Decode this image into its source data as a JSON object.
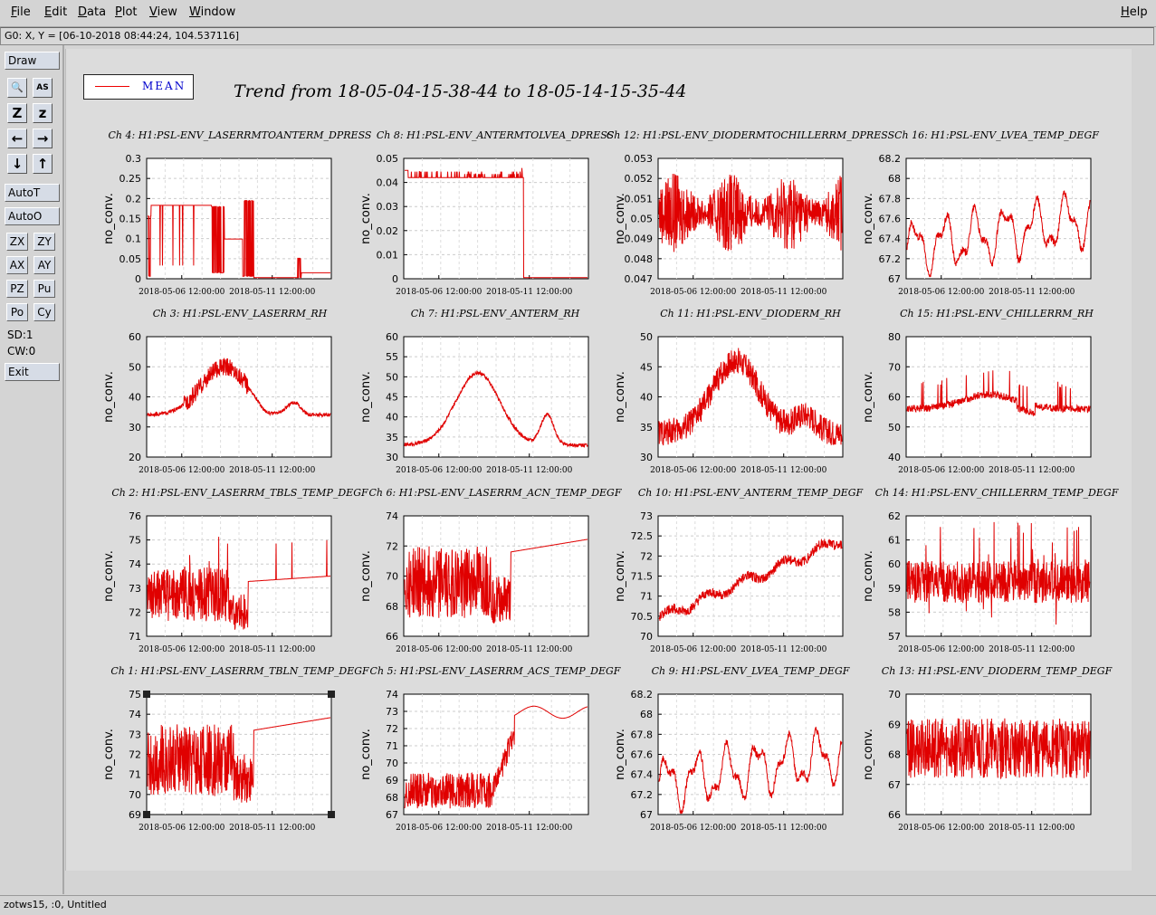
{
  "menu": {
    "file": "File",
    "edit": "Edit",
    "data": "Data",
    "plot": "Plot",
    "view": "View",
    "window": "Window",
    "help": "Help"
  },
  "coord_readout": "G0: X, Y = [06-10-2018 08:44:24, 104.537116]",
  "toolbar": {
    "draw": "Draw",
    "autot": "AutoT",
    "autoo": "AutoO",
    "zx": "ZX",
    "zy": "ZY",
    "ax": "AX",
    "ay": "AY",
    "pz": "PZ",
    "pu": "Pu",
    "po": "Po",
    "cy": "Cy",
    "sd": "SD:1",
    "cw": "CW:0",
    "exit": "Exit",
    "icons": [
      "magnify-icon",
      "text-icon",
      "zoom-out-icon",
      "zoom-in-icon",
      "left-arrow-icon",
      "right-arrow-icon",
      "down-arrow-icon",
      "up-arrow-icon"
    ],
    "icon_glyphs": [
      "🔍",
      "AS",
      "Z",
      "z",
      "←",
      "→",
      "↓",
      "↑"
    ]
  },
  "status": "zotws15, :0, Untitled",
  "legend": {
    "label": "MEAN",
    "color": "#e00000"
  },
  "trend_title": "Trend from 18-05-04-15-38-44 to 18-05-14-15-35-44",
  "chart_data": [
    {
      "type": "line",
      "title": "Ch 4: H1:PSL-ENV_LASERRMTOANTERM_DPRESS",
      "ylabel": "no_conv.",
      "yticks": [
        "0.3",
        "0.25",
        "0.2",
        "0.15",
        "0.1",
        "0.05",
        "0"
      ],
      "ylim": [
        0,
        0.3
      ],
      "xticks": [
        "2018-05-06 12:00:00",
        "2018-05-11 12:00:00"
      ],
      "pattern": "steps_low"
    },
    {
      "type": "line",
      "title": "Ch 8: H1:PSL-ENV_ANTERMTOLVEA_DPRESS",
      "ylabel": "no_conv.",
      "yticks": [
        "0.05",
        "0.04",
        "0.03",
        "0.02",
        "0.01",
        "0"
      ],
      "ylim": [
        0,
        0.05
      ],
      "xticks": [
        "2018-05-06 12:00:00",
        "2018-05-11 12:00:00"
      ],
      "pattern": "flat_drop"
    },
    {
      "type": "line",
      "title": "Ch 12: H1:PSL-ENV_DIODERMTOCHILLERRM_DPRESS",
      "ylabel": "no_conv.",
      "yticks": [
        "0.053",
        "0.052",
        "0.051",
        "0.05",
        "0.049",
        "0.048",
        "0.047"
      ],
      "ylim": [
        0.047,
        0.053
      ],
      "xticks": [
        "2018-05-06 12:00:00",
        "2018-05-11 12:00:00"
      ],
      "pattern": "dense_band"
    },
    {
      "type": "line",
      "title": "Ch 16: H1:PSL-ENV_LVEA_TEMP_DEGF",
      "ylabel": "no_conv.",
      "yticks": [
        "68.2",
        "68",
        "67.8",
        "67.6",
        "67.4",
        "67.2",
        "67"
      ],
      "ylim": [
        66.9,
        68.2
      ],
      "xticks": [
        "2018-05-06 12:00:00",
        "2018-05-11 12:00:00"
      ],
      "pattern": "wavy_up"
    },
    {
      "type": "line",
      "title": "Ch 3: H1:PSL-ENV_LASERRM_RH",
      "ylabel": "no_conv.",
      "yticks": [
        "60",
        "50",
        "40",
        "30",
        "20"
      ],
      "ylim": [
        20,
        60
      ],
      "xticks": [
        "2018-05-06 12:00:00",
        "2018-05-11 12:00:00"
      ],
      "pattern": "hump"
    },
    {
      "type": "line",
      "title": "Ch 7: H1:PSL-ENV_ANTERM_RH",
      "ylabel": "no_conv.",
      "yticks": [
        "60",
        "55",
        "50",
        "45",
        "40",
        "35",
        "30"
      ],
      "ylim": [
        30,
        60
      ],
      "xticks": [
        "2018-05-06 12:00:00",
        "2018-05-11 12:00:00"
      ],
      "pattern": "hump_smooth"
    },
    {
      "type": "line",
      "title": "Ch 11: H1:PSL-ENV_DIODERM_RH",
      "ylabel": "no_conv.",
      "yticks": [
        "50",
        "45",
        "40",
        "35",
        "30"
      ],
      "ylim": [
        30,
        50
      ],
      "xticks": [
        "2018-05-06 12:00:00",
        "2018-05-11 12:00:00"
      ],
      "pattern": "hump_noisy"
    },
    {
      "type": "line",
      "title": "Ch 15: H1:PSL-ENV_CHILLERRM_RH",
      "ylabel": "no_conv.",
      "yticks": [
        "80",
        "70",
        "60",
        "50",
        "40"
      ],
      "ylim": [
        40,
        80
      ],
      "xticks": [
        "2018-05-06 12:00:00",
        "2018-05-11 12:00:00"
      ],
      "pattern": "spiky_mid"
    },
    {
      "type": "line",
      "title": "Ch 2: H1:PSL-ENV_LASERRM_TBLS_TEMP_DEGF",
      "ylabel": "no_conv.",
      "yticks": [
        "76",
        "75",
        "74",
        "73",
        "72",
        "71"
      ],
      "ylim": [
        71,
        76
      ],
      "xticks": [
        "2018-05-06 12:00:00",
        "2018-05-11 12:00:00"
      ],
      "pattern": "osc_flat"
    },
    {
      "type": "line",
      "title": "Ch 6: H1:PSL-ENV_LASERRM_ACN_TEMP_DEGF",
      "ylabel": "no_conv.",
      "yticks": [
        "74",
        "72",
        "70",
        "68",
        "66"
      ],
      "ylim": [
        65,
        74
      ],
      "xticks": [
        "2018-05-06 12:00:00",
        "2018-05-11 12:00:00"
      ],
      "pattern": "osc_rise"
    },
    {
      "type": "line",
      "title": "Ch 10: H1:PSL-ENV_ANTERM_TEMP_DEGF",
      "ylabel": "no_conv.",
      "yticks": [
        "73",
        "72.5",
        "72",
        "71.5",
        "71",
        "70.5",
        "70"
      ],
      "ylim": [
        70,
        73
      ],
      "xticks": [
        "2018-05-06 12:00:00",
        "2018-05-11 12:00:00"
      ],
      "pattern": "rising"
    },
    {
      "type": "line",
      "title": "Ch 14: H1:PSL-ENV_CHILLERRM_TEMP_DEGF",
      "ylabel": "no_conv.",
      "yticks": [
        "62",
        "61",
        "60",
        "59",
        "58",
        "57"
      ],
      "ylim": [
        57,
        62
      ],
      "xticks": [
        "2018-05-06 12:00:00",
        "2018-05-11 12:00:00"
      ],
      "pattern": "noisy_flat"
    },
    {
      "type": "line",
      "title": "Ch 1: H1:PSL-ENV_LASERRM_TBLN_TEMP_DEGF",
      "ylabel": "no_conv.",
      "yticks": [
        "75",
        "74",
        "73",
        "72",
        "71",
        "70",
        "69"
      ],
      "ylim": [
        69,
        75
      ],
      "xticks": [
        "2018-05-06 12:00:00",
        "2018-05-11 12:00:00"
      ],
      "pattern": "osc_rise",
      "selected": true
    },
    {
      "type": "line",
      "title": "Ch 5: H1:PSL-ENV_LASERRM_ACS_TEMP_DEGF",
      "ylabel": "no_conv.",
      "yticks": [
        "74",
        "73",
        "72",
        "71",
        "70",
        "69",
        "68",
        "67"
      ],
      "ylim": [
        67,
        74
      ],
      "xticks": [
        "2018-05-06 12:00:00",
        "2018-05-11 12:00:00"
      ],
      "pattern": "osc_rise2"
    },
    {
      "type": "line",
      "title": "Ch 9: H1:PSL-ENV_LVEA_TEMP_DEGF",
      "ylabel": "no_conv.",
      "yticks": [
        "68.2",
        "68",
        "67.8",
        "67.6",
        "67.4",
        "67.2",
        "67"
      ],
      "ylim": [
        66.9,
        68.2
      ],
      "xticks": [
        "2018-05-06 12:00:00",
        "2018-05-11 12:00:00"
      ],
      "pattern": "wavy_up"
    },
    {
      "type": "line",
      "title": "Ch 13: H1:PSL-ENV_DIODERM_TEMP_DEGF",
      "ylabel": "no_conv.",
      "yticks": [
        "70",
        "69",
        "68",
        "67",
        "66"
      ],
      "ylim": [
        66,
        70
      ],
      "xticks": [
        "2018-05-06 12:00:00",
        "2018-05-11 12:00:00"
      ],
      "pattern": "dense_band2"
    }
  ]
}
